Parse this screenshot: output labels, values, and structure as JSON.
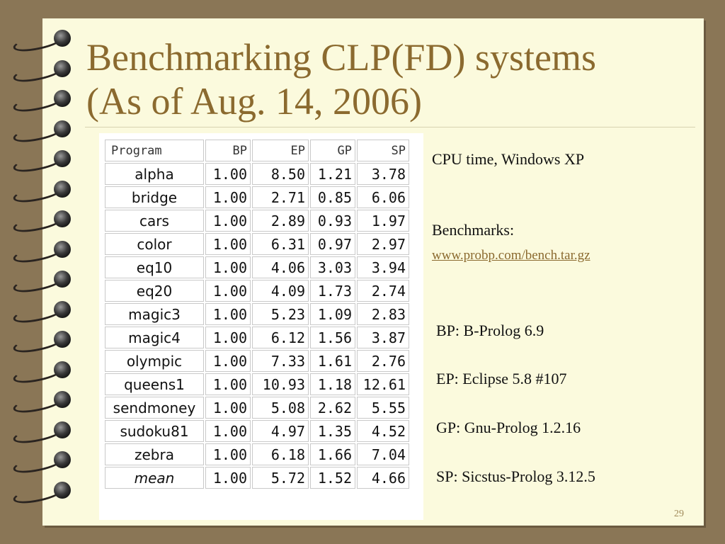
{
  "slide": {
    "title_line1": "Benchmarking CLP(FD) systems",
    "title_line2": "(As of Aug. 14, 2006)",
    "page_number": "29"
  },
  "table": {
    "headers": [
      "Program",
      "BP",
      "EP",
      "GP",
      "SP"
    ],
    "rows": [
      [
        "alpha",
        "1.00",
        "8.50",
        "1.21",
        "3.78"
      ],
      [
        "bridge",
        "1.00",
        "2.71",
        "0.85",
        "6.06"
      ],
      [
        "cars",
        "1.00",
        "2.89",
        "0.93",
        "1.97"
      ],
      [
        "color",
        "1.00",
        "6.31",
        "0.97",
        "2.97"
      ],
      [
        "eq10",
        "1.00",
        "4.06",
        "3.03",
        "3.94"
      ],
      [
        "eq20",
        "1.00",
        "4.09",
        "1.73",
        "2.74"
      ],
      [
        "magic3",
        "1.00",
        "5.23",
        "1.09",
        "2.83"
      ],
      [
        "magic4",
        "1.00",
        "6.12",
        "1.56",
        "3.87"
      ],
      [
        "olympic",
        "1.00",
        "7.33",
        "1.61",
        "2.76"
      ],
      [
        "queens1",
        "1.00",
        "10.93",
        "1.18",
        "12.61"
      ],
      [
        "sendmoney",
        "1.00",
        "5.08",
        "2.62",
        "5.55"
      ],
      [
        "sudoku81",
        "1.00",
        "4.97",
        "1.35",
        "4.52"
      ],
      [
        "zebra",
        "1.00",
        "6.18",
        "1.66",
        "7.04"
      ],
      [
        "mean",
        "1.00",
        "5.72",
        "1.52",
        "4.66"
      ]
    ]
  },
  "notes": {
    "cpu": "CPU time, Windows XP",
    "benchmarks_label": "Benchmarks:",
    "benchmarks_link": "www.probp.com/bench.tar.gz",
    "bp": "BP: B-Prolog 6.9",
    "ep": "EP: Eclipse 5.8 #107",
    "gp": "GP: Gnu-Prolog 1.2.16",
    "sp": "SP: Sicstus-Prolog 3.12.5"
  },
  "colors": {
    "background": "#8a7656",
    "page": "#fbfadd",
    "title": "#8b6a2f"
  },
  "icons": [
    "spiral-binding-ring"
  ]
}
